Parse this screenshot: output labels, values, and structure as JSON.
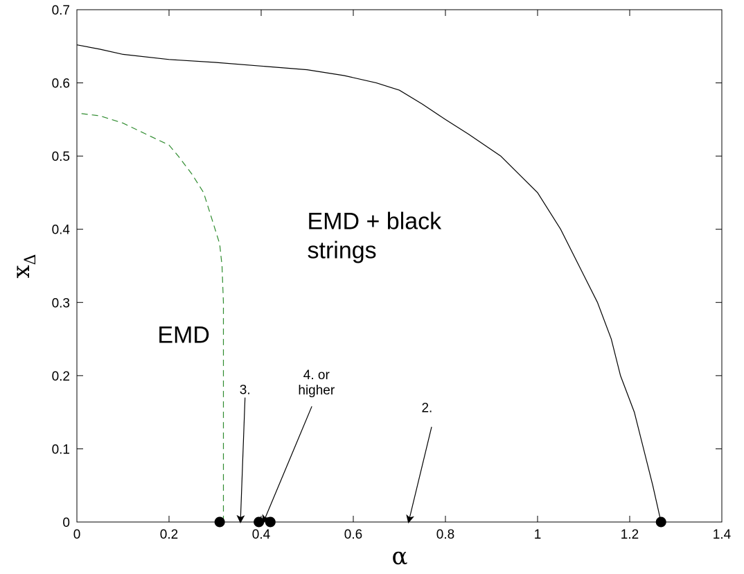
{
  "chart_data": {
    "type": "line",
    "title": "",
    "xlabel": "α",
    "ylabel": "x",
    "ylabel_subscript": "Δ",
    "xlim": [
      0,
      1.4
    ],
    "ylim": [
      0,
      0.7
    ],
    "xticks": [
      0,
      0.2,
      0.4,
      0.6,
      0.8,
      1,
      1.2,
      1.4
    ],
    "xtick_labels": [
      "0",
      "0.2",
      "0.4",
      "0.6",
      "0.8",
      "1",
      "1.2",
      "1.4"
    ],
    "yticks": [
      0,
      0.1,
      0.2,
      0.3,
      0.4,
      0.5,
      0.6,
      0.7
    ],
    "ytick_labels": [
      "0",
      "0.1",
      "0.2",
      "0.3",
      "0.4",
      "0.5",
      "0.6",
      "0.7"
    ],
    "grid": false,
    "series": [
      {
        "style": "solid",
        "color": "#000000",
        "points": [
          [
            0.0,
            0.652
          ],
          [
            0.05,
            0.646
          ],
          [
            0.1,
            0.639
          ],
          [
            0.2,
            0.632
          ],
          [
            0.3,
            0.628
          ],
          [
            0.4,
            0.623
          ],
          [
            0.5,
            0.618
          ],
          [
            0.58,
            0.61
          ],
          [
            0.65,
            0.6
          ],
          [
            0.7,
            0.59
          ],
          [
            0.75,
            0.571
          ],
          [
            0.8,
            0.55
          ],
          [
            0.85,
            0.53
          ],
          [
            0.92,
            0.5
          ],
          [
            1.0,
            0.45
          ],
          [
            1.05,
            0.4
          ],
          [
            1.09,
            0.35
          ],
          [
            1.13,
            0.3
          ],
          [
            1.16,
            0.25
          ],
          [
            1.18,
            0.2
          ],
          [
            1.21,
            0.15
          ],
          [
            1.23,
            0.1
          ],
          [
            1.25,
            0.05
          ],
          [
            1.268,
            0.0
          ]
        ]
      },
      {
        "style": "dashed",
        "color": "#2e8b2e",
        "points": [
          [
            0.01,
            0.558
          ],
          [
            0.05,
            0.555
          ],
          [
            0.1,
            0.545
          ],
          [
            0.15,
            0.53
          ],
          [
            0.2,
            0.515
          ],
          [
            0.22,
            0.5
          ],
          [
            0.25,
            0.475
          ],
          [
            0.275,
            0.45
          ],
          [
            0.29,
            0.42
          ],
          [
            0.3,
            0.4
          ],
          [
            0.31,
            0.38
          ],
          [
            0.315,
            0.35
          ],
          [
            0.318,
            0.3
          ],
          [
            0.318,
            0.2
          ],
          [
            0.318,
            0.1
          ],
          [
            0.318,
            0.0
          ]
        ]
      }
    ],
    "markers": [
      [
        0.31,
        0.0
      ],
      [
        0.395,
        0.0
      ],
      [
        0.42,
        0.0
      ],
      [
        1.268,
        0.0
      ]
    ],
    "region_labels": [
      {
        "lines": [
          "EMD + black",
          "strings"
        ],
        "x": 0.5,
        "y": 0.4
      },
      {
        "lines": [
          "EMD"
        ],
        "x": 0.175,
        "y": 0.245
      }
    ],
    "annotations": [
      {
        "lines": [
          "3."
        ],
        "text_x": 0.365,
        "text_y": 0.175,
        "arrow_from": [
          0.365,
          0.17
        ],
        "arrow_to": [
          0.355,
          0.0
        ]
      },
      {
        "lines": [
          "4. or",
          "higher"
        ],
        "text_x": 0.52,
        "text_y": 0.195,
        "arrow_from": [
          0.51,
          0.158
        ],
        "arrow_to": [
          0.405,
          0.0
        ]
      },
      {
        "lines": [
          "2."
        ],
        "text_x": 0.76,
        "text_y": 0.15,
        "arrow_from": [
          0.77,
          0.13
        ],
        "arrow_to": [
          0.72,
          0.0
        ]
      }
    ]
  }
}
